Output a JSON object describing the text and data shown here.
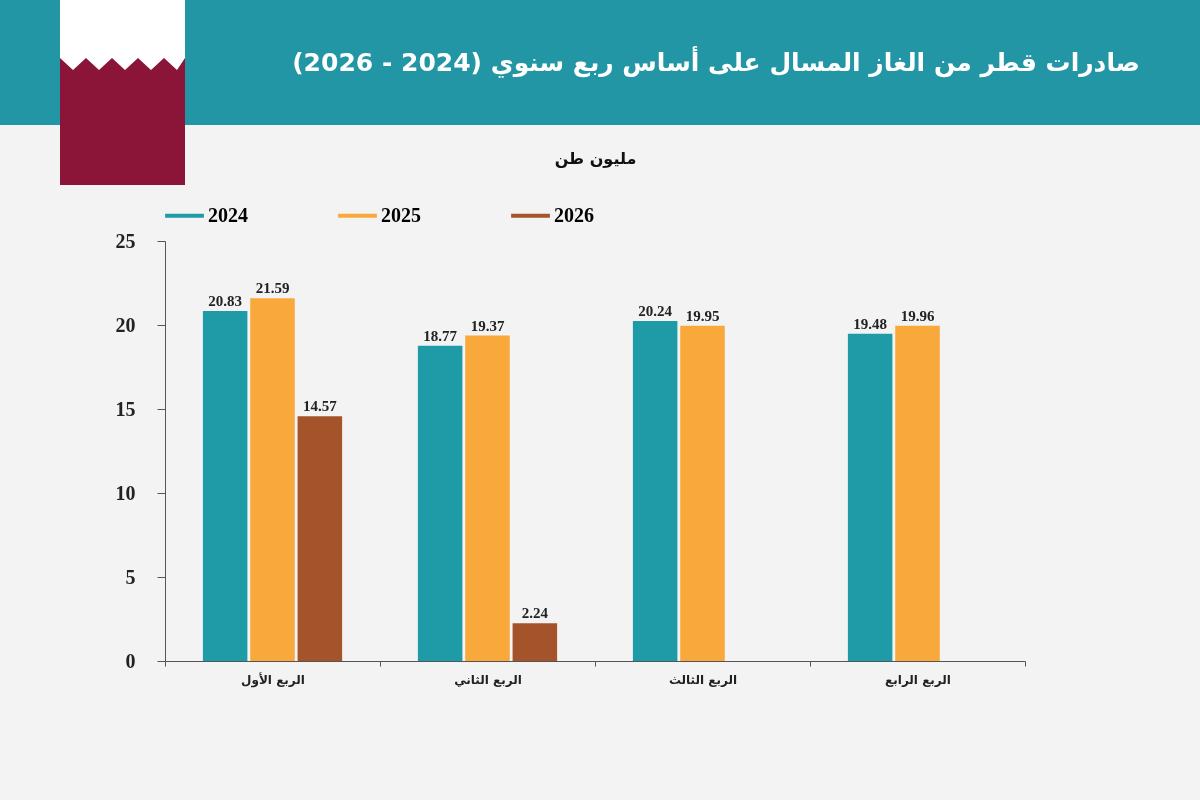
{
  "chart_data": {
    "type": "bar",
    "title": "صادرات قطر من الغاز المسال على أساس ربع سنوي (2024 - 2026)",
    "ylabel": "مليون طن",
    "categories": [
      "الربع الأول",
      "الربع الثاني",
      "الربع الثالث",
      "الربع الرابع"
    ],
    "series": [
      {
        "name": "2024",
        "color": "#1f9aa7",
        "values": [
          20.83,
          18.77,
          20.24,
          19.48
        ]
      },
      {
        "name": "2025",
        "color": "#f9a83b",
        "values": [
          21.59,
          19.37,
          19.95,
          19.96
        ]
      },
      {
        "name": "2026",
        "color": "#a4532a",
        "values": [
          14.57,
          2.24,
          null,
          null
        ]
      }
    ],
    "ylim": [
      0,
      25
    ],
    "yticks": [
      0,
      5,
      10,
      15,
      20,
      25
    ],
    "grid": false,
    "legend": "top",
    "data_labels": true
  }
}
